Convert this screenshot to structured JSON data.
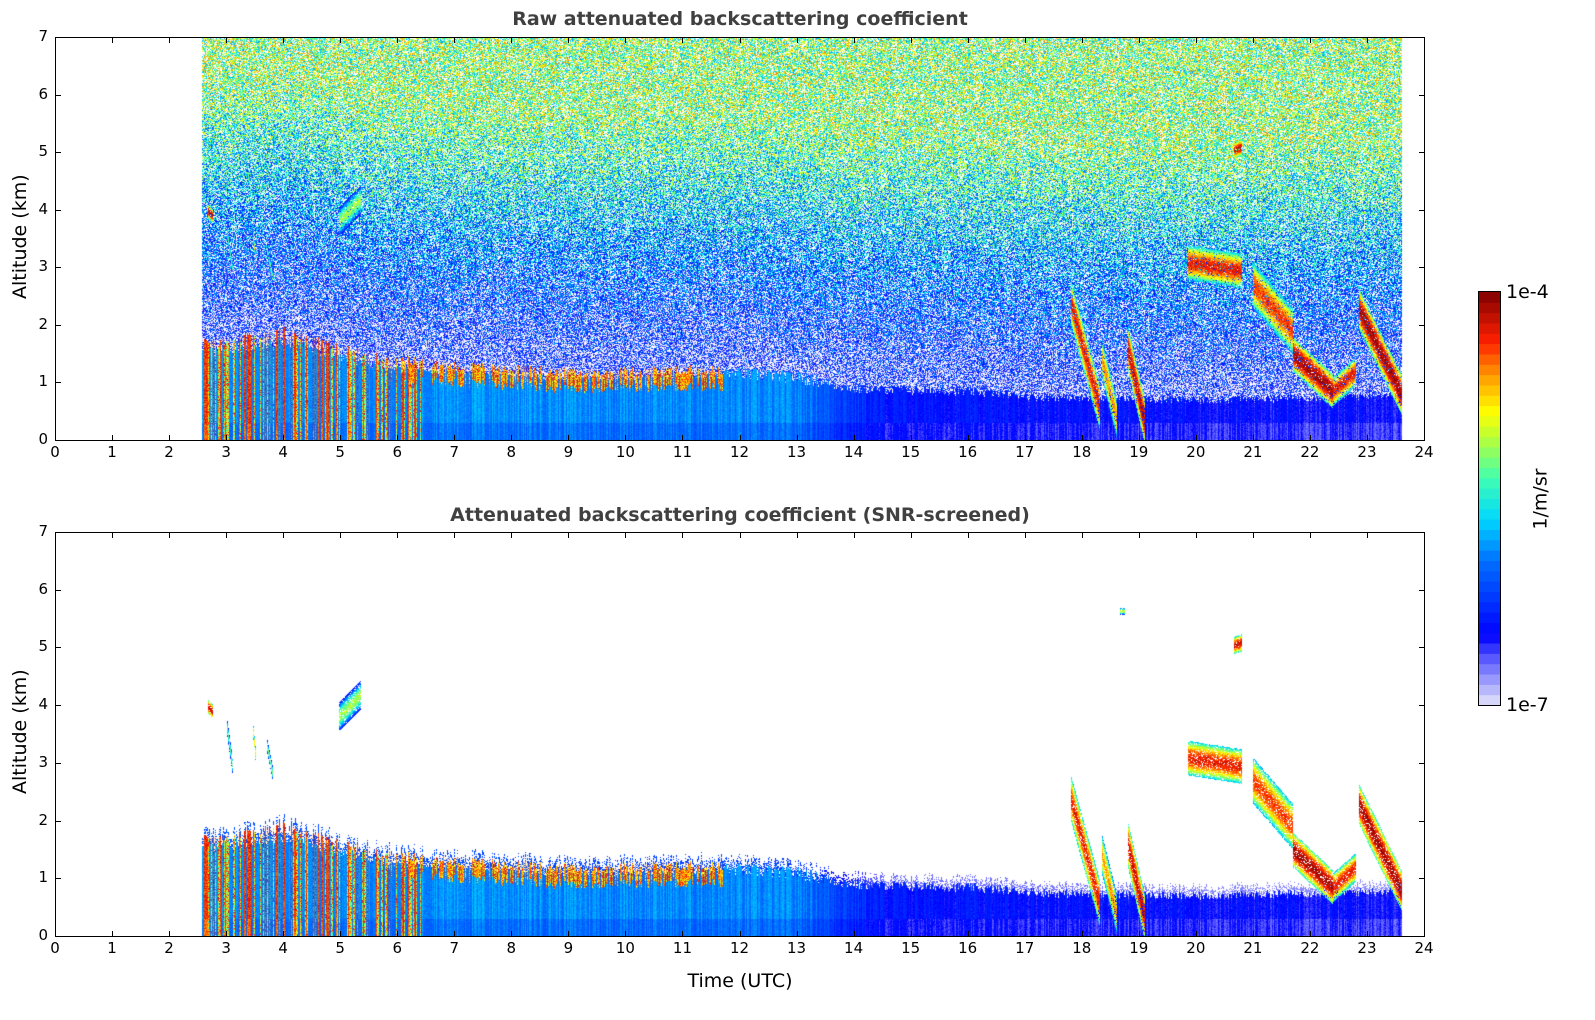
{
  "chart_data": [
    {
      "type": "heatmap",
      "title": "Raw attenuated backscattering coefficient",
      "xlabel": "",
      "ylabel": "Altitude (km)",
      "xlim": [
        0,
        24
      ],
      "ylim": [
        0,
        7
      ],
      "xticks": [
        0,
        1,
        2,
        3,
        4,
        5,
        6,
        7,
        8,
        9,
        10,
        11,
        12,
        13,
        14,
        15,
        16,
        17,
        18,
        19,
        20,
        21,
        22,
        23,
        24
      ],
      "yticks": [
        0,
        1,
        2,
        3,
        4,
        5,
        6,
        7
      ],
      "data_time_range_utc": [
        2.55,
        23.6
      ],
      "noise_above_boundary_layer": true,
      "snr_screened": false
    },
    {
      "type": "heatmap",
      "title": "Attenuated backscattering coefficient (SNR-screened)",
      "xlabel": "Time (UTC)",
      "ylabel": "Altitude (km)",
      "xlim": [
        0,
        24
      ],
      "ylim": [
        0,
        7
      ],
      "xticks": [
        0,
        1,
        2,
        3,
        4,
        5,
        6,
        7,
        8,
        9,
        10,
        11,
        12,
        13,
        14,
        15,
        16,
        17,
        18,
        19,
        20,
        21,
        22,
        23,
        24
      ],
      "yticks": [
        0,
        1,
        2,
        3,
        4,
        5,
        6,
        7
      ],
      "data_time_range_utc": [
        2.55,
        23.6
      ],
      "noise_above_boundary_layer": false,
      "snr_screened": true
    }
  ],
  "scene": {
    "boundary_layer_top_km": [
      [
        2.6,
        1.6
      ],
      [
        4,
        1.8
      ],
      [
        5.5,
        1.4
      ],
      [
        6.5,
        1.3
      ],
      [
        9,
        1.15
      ],
      [
        11.5,
        1.2
      ],
      [
        13,
        1.1
      ],
      [
        14,
        0.9
      ],
      [
        16,
        0.85
      ],
      [
        17.5,
        0.75
      ],
      [
        20,
        0.7
      ],
      [
        22,
        0.75
      ],
      [
        23.6,
        0.8
      ]
    ],
    "boundary_layer_log10_beta": [
      [
        2.6,
        -5.8
      ],
      [
        13,
        -5.9
      ],
      [
        14.5,
        -6.4
      ],
      [
        24,
        -6.5
      ]
    ],
    "cloud_segments": [
      {
        "t": [
          2.65,
          2.75
        ],
        "alt": [
          4.0,
          3.9
        ],
        "thick": 0.25,
        "log10_beta": -4.2
      },
      {
        "t": [
          3.0,
          3.1
        ],
        "alt": [
          3.6,
          2.9
        ],
        "thick": 0.3,
        "log10_beta": -5.3
      },
      {
        "t": [
          3.45,
          3.5
        ],
        "alt": [
          3.6,
          3.1
        ],
        "thick": 0.25,
        "log10_beta": -4.8
      },
      {
        "t": [
          3.7,
          3.8
        ],
        "alt": [
          3.3,
          2.8
        ],
        "thick": 0.25,
        "log10_beta": -5.2
      },
      {
        "t": [
          4.95,
          5.35
        ],
        "alt": [
          3.8,
          4.2
        ],
        "thick": 0.5,
        "log10_beta": -5.1
      },
      {
        "t": [
          17.8,
          18.3
        ],
        "alt": [
          2.4,
          0.6
        ],
        "thick": 0.8,
        "log10_beta": -4.3
      },
      {
        "t": [
          18.35,
          18.6
        ],
        "alt": [
          1.4,
          0.4
        ],
        "thick": 0.7,
        "log10_beta": -4.6
      },
      {
        "t": [
          18.8,
          19.1
        ],
        "alt": [
          1.6,
          0.3
        ],
        "thick": 0.8,
        "log10_beta": -4.2
      },
      {
        "t": [
          19.85,
          20.8
        ],
        "alt": [
          3.1,
          2.95
        ],
        "thick": 0.6,
        "log10_beta": -4.3
      },
      {
        "t": [
          20.65,
          20.8
        ],
        "alt": [
          5.05,
          5.1
        ],
        "thick": 0.3,
        "log10_beta": -4.2
      },
      {
        "t": [
          18.65,
          18.75
        ],
        "alt": [
          5.65,
          5.65
        ],
        "thick": 0.12,
        "log10_beta": -5.0
      },
      {
        "t": [
          21.0,
          21.7
        ],
        "alt": [
          2.7,
          1.9
        ],
        "thick": 0.8,
        "log10_beta": -4.4
      },
      {
        "t": [
          21.7,
          22.4
        ],
        "alt": [
          1.5,
          0.85
        ],
        "thick": 0.6,
        "log10_beta": -4.1
      },
      {
        "t": [
          22.4,
          22.8
        ],
        "alt": [
          0.85,
          1.2
        ],
        "thick": 0.5,
        "log10_beta": -4.3
      },
      {
        "t": [
          22.85,
          23.6
        ],
        "alt": [
          2.3,
          0.8
        ],
        "thick": 0.7,
        "log10_beta": -4.1
      }
    ],
    "layer_top_cloud": {
      "t": [
        5.8,
        11.7
      ],
      "log10_beta": -4.3
    }
  },
  "colorbar": {
    "label": "1/m/sr",
    "max_label": "1e-4",
    "min_label": "1e-7",
    "log10_range": [
      -7,
      -4
    ],
    "stops": [
      [
        0,
        "#e6e6fa"
      ],
      [
        0.12,
        "#5050ff"
      ],
      [
        0.17,
        "#0000ff"
      ],
      [
        0.35,
        "#0070ff"
      ],
      [
        0.45,
        "#00d8ff"
      ],
      [
        0.55,
        "#40ffb0"
      ],
      [
        0.64,
        "#b0ff40"
      ],
      [
        0.71,
        "#ffff00"
      ],
      [
        0.8,
        "#ff9800"
      ],
      [
        0.88,
        "#ff2000"
      ],
      [
        1,
        "#800000"
      ]
    ]
  }
}
